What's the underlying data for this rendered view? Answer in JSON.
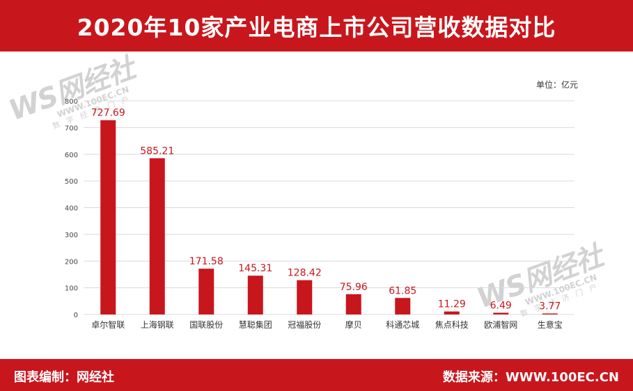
{
  "title": "2020年10家产业电商上市公司营收数据对比",
  "unit_label": "单位：亿元",
  "footer": {
    "left": "图表编制：网经社",
    "right": "数据来源：WWW.100EC.CN"
  },
  "watermark": {
    "brand": "WS网经社",
    "url": "WWW.100EC.CN",
    "tagline": "数字经济门户"
  },
  "colors": {
    "accent": "#c8161d",
    "bar": "#c8161d",
    "label": "#c8161d",
    "grid": "#d9d9d9"
  },
  "chart_data": {
    "type": "bar",
    "title": "2020年10家产业电商上市公司营收数据对比",
    "categories": [
      "卓尔智联",
      "上海钢联",
      "国联股份",
      "慧聪集团",
      "冠福股份",
      "摩贝",
      "科通芯城",
      "焦点科技",
      "欧浦智网",
      "生意宝"
    ],
    "values": [
      727.69,
      585.21,
      171.58,
      145.31,
      128.42,
      75.96,
      61.85,
      11.29,
      6.49,
      3.77
    ],
    "value_labels": [
      "727.69",
      "585.21",
      "171.58",
      "145.31",
      "128.42",
      "75.96",
      "61.85",
      "11.29",
      "6.49",
      "3.77"
    ],
    "ylim": [
      0,
      800
    ],
    "yticks": [
      0,
      100,
      200,
      300,
      400,
      500,
      600,
      700,
      800
    ],
    "xlabel": "",
    "ylabel": "",
    "grid": true
  }
}
